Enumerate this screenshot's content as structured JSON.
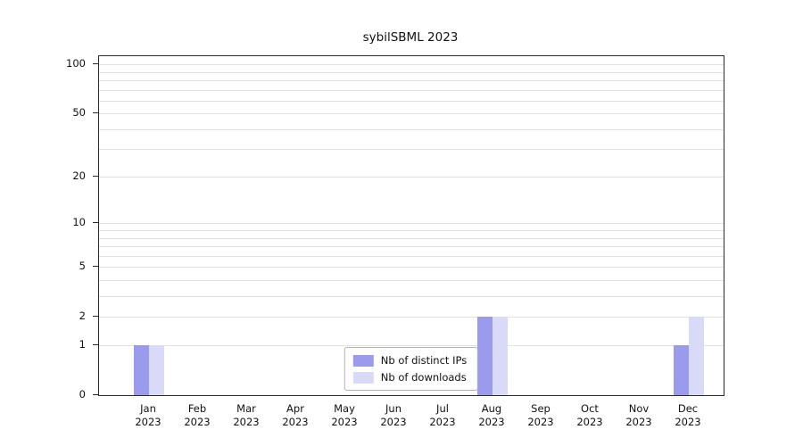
{
  "title": "sybilSBML 2023",
  "legend": {
    "items": [
      {
        "label": "Nb of distinct IPs",
        "color": "#9b9bee"
      },
      {
        "label": "Nb of downloads",
        "color": "#d9d9f8"
      }
    ]
  },
  "chart_data": {
    "type": "bar",
    "title": "sybilSBML 2023",
    "categories": [
      "Jan",
      "Feb",
      "Mar",
      "Apr",
      "May",
      "Jun",
      "Jul",
      "Aug",
      "Sep",
      "Oct",
      "Nov",
      "Dec"
    ],
    "category_year": "2023",
    "series": [
      {
        "name": "Nb of distinct IPs",
        "color": "#9b9bee",
        "values": [
          1,
          0,
          0,
          0,
          0,
          0,
          0,
          2,
          0,
          0,
          0,
          1
        ]
      },
      {
        "name": "Nb of downloads",
        "color": "#d9d9f8",
        "values": [
          1,
          0,
          0,
          0,
          0,
          0,
          0,
          2,
          0,
          0,
          0,
          2
        ]
      }
    ],
    "y_ticks": [
      0,
      1,
      2,
      5,
      10,
      20,
      50,
      100
    ],
    "y_minor_gridlines": [
      1,
      2,
      3,
      4,
      5,
      6,
      7,
      8,
      9,
      10,
      20,
      30,
      40,
      50,
      60,
      70,
      80,
      90,
      100
    ],
    "y_scale": "log10(1+v)",
    "ylim": [
      0,
      110
    ],
    "grid": "horizontal",
    "legend_position": "bottom-center"
  }
}
